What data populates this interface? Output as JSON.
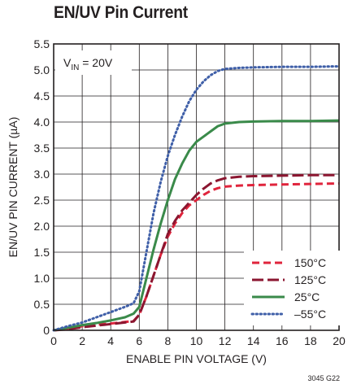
{
  "chart_data": {
    "type": "line",
    "title": "EN/UV Pin Current",
    "xlabel": "ENABLE PIN VOLTAGE (V)",
    "ylabel": "EN/UV PIN CURRENT (µA)",
    "xlim": [
      0,
      20
    ],
    "ylim": [
      0,
      5.5
    ],
    "xticks": [
      "0",
      "2",
      "4",
      "6",
      "8",
      "10",
      "12",
      "14",
      "16",
      "18",
      "20"
    ],
    "yticks": [
      "0",
      "0.5",
      "1.0",
      "1.5",
      "2.0",
      "2.5",
      "3.0",
      "3.5",
      "4.0",
      "4.5",
      "5.0",
      "5.5"
    ],
    "grid": true,
    "legend_position": "bottom-right",
    "annotation": {
      "main": "V",
      "sub": "IN",
      "rest": " = 20V"
    },
    "figure_id": "3045 G22",
    "series": [
      {
        "name": "150°C",
        "color": "#e0243c",
        "style": "dashed",
        "x": [
          0,
          1,
          2,
          3,
          4,
          5,
          5.6,
          6,
          6.5,
          7,
          7.5,
          8,
          8.5,
          9,
          9.5,
          10,
          10.5,
          11,
          11.5,
          12,
          13,
          14,
          16,
          18,
          20
        ],
        "y": [
          0,
          0.03,
          0.08,
          0.11,
          0.13,
          0.16,
          0.18,
          0.3,
          0.65,
          1.05,
          1.45,
          1.8,
          2.05,
          2.25,
          2.4,
          2.5,
          2.6,
          2.68,
          2.73,
          2.76,
          2.78,
          2.79,
          2.8,
          2.81,
          2.82
        ]
      },
      {
        "name": "125°C",
        "color": "#8b1630",
        "style": "longdash",
        "x": [
          0,
          1,
          2,
          3,
          4,
          5,
          5.6,
          6,
          6.5,
          7,
          7.5,
          8,
          8.5,
          9,
          9.5,
          10,
          10.5,
          11,
          11.5,
          12,
          13,
          14,
          16,
          18,
          20
        ],
        "y": [
          0,
          0.02,
          0.06,
          0.09,
          0.12,
          0.15,
          0.17,
          0.3,
          0.65,
          1.05,
          1.45,
          1.85,
          2.1,
          2.3,
          2.45,
          2.6,
          2.72,
          2.82,
          2.88,
          2.92,
          2.95,
          2.96,
          2.97,
          2.98,
          2.98
        ]
      },
      {
        "name": "25°C",
        "color": "#3a8a4a",
        "style": "solid",
        "x": [
          0,
          1,
          2,
          3,
          4,
          5,
          5.6,
          6,
          6.5,
          7,
          7.5,
          8,
          8.5,
          9,
          9.5,
          10,
          10.5,
          11,
          11.5,
          12,
          13,
          14,
          16,
          18,
          20
        ],
        "y": [
          0,
          0.05,
          0.1,
          0.14,
          0.19,
          0.25,
          0.32,
          0.45,
          1.0,
          1.55,
          2.05,
          2.5,
          2.9,
          3.2,
          3.45,
          3.62,
          3.72,
          3.82,
          3.92,
          3.97,
          4.0,
          4.01,
          4.02,
          4.02,
          4.03
        ]
      },
      {
        "name": "–55°C",
        "color": "#3f5fa8",
        "style": "dotted",
        "x": [
          0,
          1,
          2,
          3,
          4,
          5,
          5.6,
          6,
          6.5,
          7,
          7.5,
          8,
          8.5,
          9,
          9.5,
          10,
          10.5,
          11,
          11.5,
          12,
          13,
          14,
          16,
          18,
          20
        ],
        "y": [
          0,
          0.08,
          0.15,
          0.25,
          0.35,
          0.45,
          0.52,
          0.75,
          1.5,
          2.25,
          2.85,
          3.35,
          3.75,
          4.1,
          4.4,
          4.62,
          4.78,
          4.9,
          4.98,
          5.02,
          5.04,
          5.05,
          5.06,
          5.06,
          5.07
        ]
      }
    ]
  }
}
